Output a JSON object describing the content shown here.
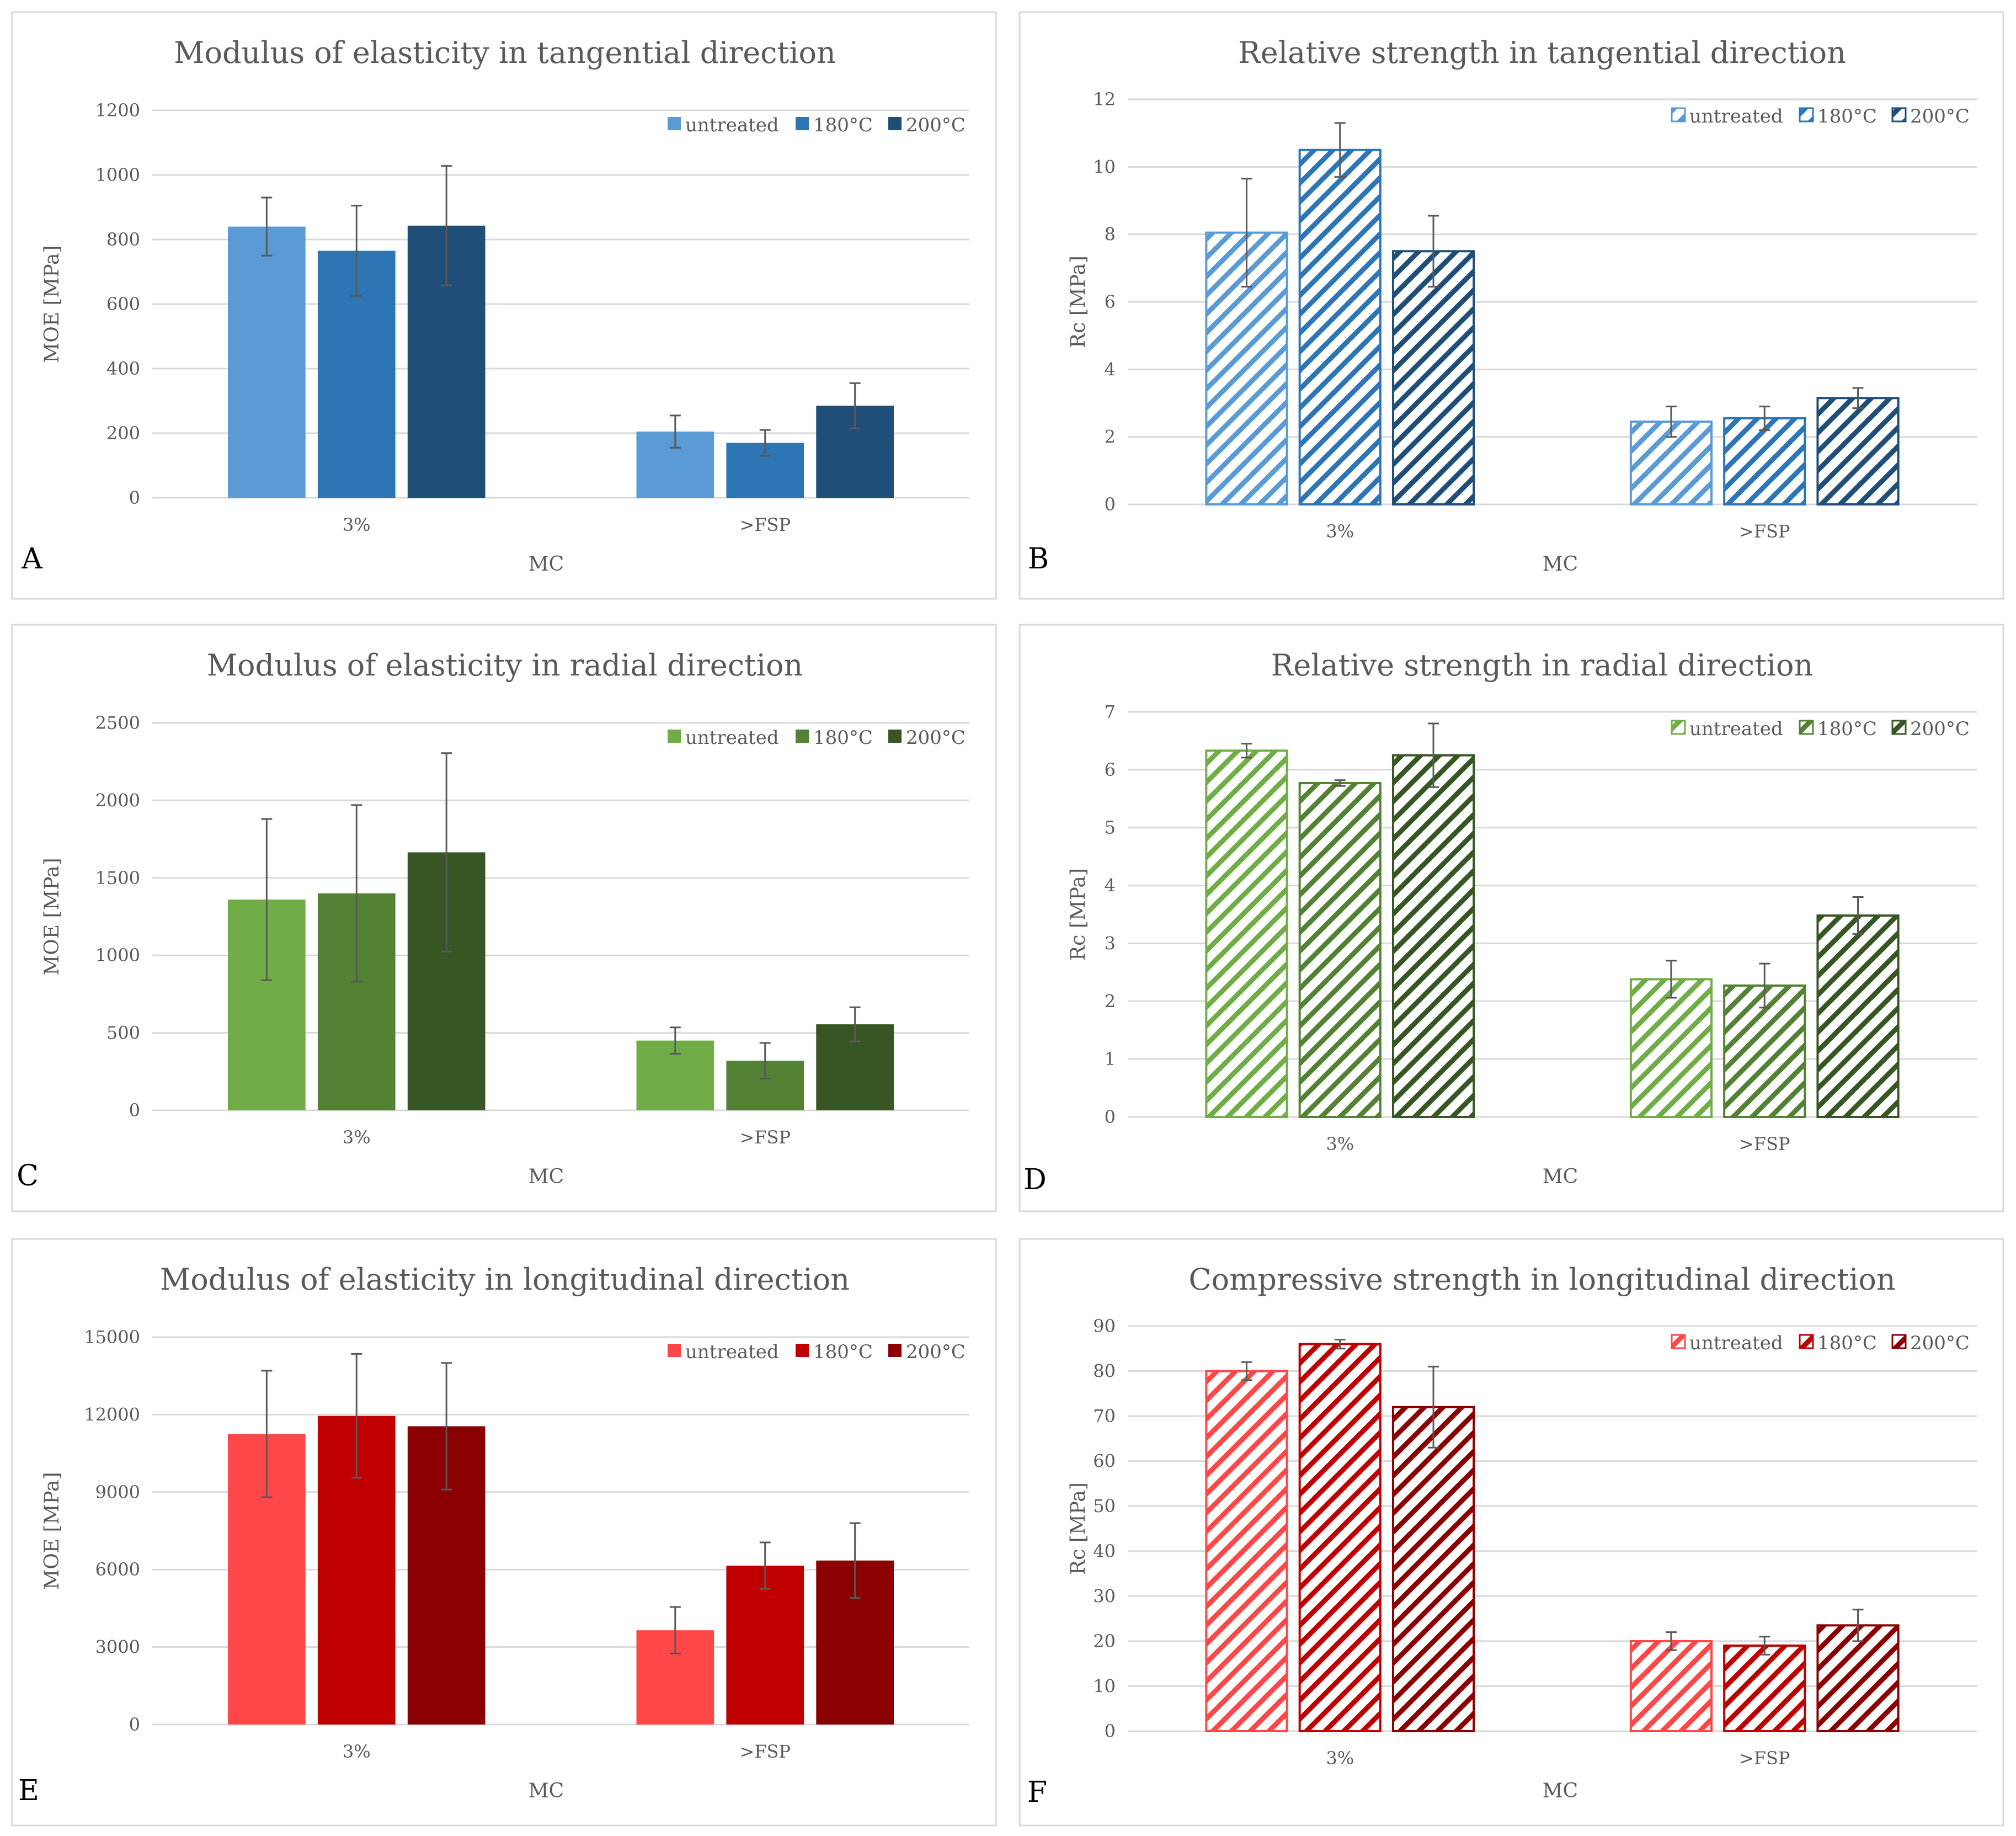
{
  "chart_data": [
    {
      "panel": "A",
      "type": "bar",
      "style": "solid",
      "title": "Modulus of elasticity in tangential direction",
      "xlabel": "MC",
      "ylabel": "MOE [MPa]",
      "categories": [
        "3%",
        ">FSP"
      ],
      "ylim": [
        0,
        1200
      ],
      "yticks": [
        0,
        200,
        400,
        600,
        800,
        1000,
        1200
      ],
      "series": [
        {
          "name": "untreated",
          "color": "#5B9BD5",
          "values": [
            840,
            205
          ],
          "err": [
            90,
            50
          ]
        },
        {
          "name": "180°C",
          "color": "#2E75B6",
          "values": [
            765,
            170
          ],
          "err": [
            140,
            40
          ]
        },
        {
          "name": "200°C",
          "color": "#1F4E79",
          "values": [
            843,
            285
          ],
          "err": [
            185,
            70
          ]
        }
      ]
    },
    {
      "panel": "B",
      "type": "bar",
      "style": "hatched",
      "title": "Relative strength in tangential direction",
      "xlabel": "MC",
      "ylabel": "Rc [MPa]",
      "categories": [
        "3%",
        ">FSP"
      ],
      "ylim": [
        0,
        12
      ],
      "yticks": [
        0,
        2,
        4,
        6,
        8,
        10,
        12
      ],
      "series": [
        {
          "name": "untreated",
          "color": "#5B9BD5",
          "values": [
            8.05,
            2.45
          ],
          "err": [
            1.6,
            0.45
          ]
        },
        {
          "name": "180°C",
          "color": "#2E75B6",
          "values": [
            10.5,
            2.55
          ],
          "err": [
            0.8,
            0.35
          ]
        },
        {
          "name": "200°C",
          "color": "#1F4E79",
          "values": [
            7.5,
            3.15
          ],
          "err": [
            1.05,
            0.3
          ]
        }
      ]
    },
    {
      "panel": "C",
      "type": "bar",
      "style": "solid",
      "title": "Modulus of elasticity in radial direction",
      "xlabel": "MC",
      "ylabel": "MOE [MPa]",
      "categories": [
        "3%",
        ">FSP"
      ],
      "ylim": [
        0,
        2500
      ],
      "yticks": [
        0,
        500,
        1000,
        1500,
        2000,
        2500
      ],
      "series": [
        {
          "name": "untreated",
          "color": "#70AD47",
          "values": [
            1360,
            450
          ],
          "err": [
            520,
            85
          ]
        },
        {
          "name": "180°C",
          "color": "#548235",
          "values": [
            1400,
            320
          ],
          "err": [
            570,
            115
          ]
        },
        {
          "name": "200°C",
          "color": "#375623",
          "values": [
            1665,
            555
          ],
          "err": [
            640,
            110
          ]
        }
      ]
    },
    {
      "panel": "D",
      "type": "bar",
      "style": "hatched",
      "title": "Relative strength in radial direction",
      "xlabel": "MC",
      "ylabel": "Rc [MPa]",
      "categories": [
        "3%",
        ">FSP"
      ],
      "ylim": [
        0,
        7
      ],
      "yticks": [
        0,
        1,
        2,
        3,
        4,
        5,
        6,
        7
      ],
      "series": [
        {
          "name": "untreated",
          "color": "#70AD47",
          "values": [
            6.33,
            2.38
          ],
          "err": [
            0.12,
            0.32
          ]
        },
        {
          "name": "180°C",
          "color": "#548235",
          "values": [
            5.77,
            2.27
          ],
          "err": [
            0.05,
            0.38
          ]
        },
        {
          "name": "200°C",
          "color": "#375623",
          "values": [
            6.25,
            3.48
          ],
          "err": [
            0.55,
            0.32
          ]
        }
      ]
    },
    {
      "panel": "E",
      "type": "bar",
      "style": "solid",
      "title": "Modulus of elasticity in longitudinal direction",
      "xlabel": "MC",
      "ylabel": "MOE [MPa]",
      "categories": [
        "3%",
        ">FSP"
      ],
      "ylim": [
        0,
        15000
      ],
      "yticks": [
        0,
        3000,
        6000,
        9000,
        12000,
        15000
      ],
      "series": [
        {
          "name": "untreated",
          "color": "#FF4747",
          "values": [
            11250,
            3650
          ],
          "err": [
            2450,
            900
          ]
        },
        {
          "name": "180°C",
          "color": "#C00000",
          "values": [
            11950,
            6150
          ],
          "err": [
            2400,
            900
          ]
        },
        {
          "name": "200°C",
          "color": "#8B0000",
          "values": [
            11550,
            6350
          ],
          "err": [
            2450,
            1450
          ]
        }
      ]
    },
    {
      "panel": "F",
      "type": "bar",
      "style": "hatched",
      "title": "Compressive strength in longitudinal direction",
      "xlabel": "MC",
      "ylabel": "Rc [MPa]",
      "categories": [
        "3%",
        ">FSP"
      ],
      "ylim": [
        0,
        90
      ],
      "yticks": [
        0,
        10,
        20,
        30,
        40,
        50,
        60,
        70,
        80,
        90
      ],
      "series": [
        {
          "name": "untreated",
          "color": "#FF4747",
          "values": [
            80,
            20
          ],
          "err": [
            2,
            2
          ]
        },
        {
          "name": "180°C",
          "color": "#C00000",
          "values": [
            86,
            19
          ],
          "err": [
            1,
            2
          ]
        },
        {
          "name": "200°C",
          "color": "#8B0000",
          "values": [
            72,
            23.5
          ],
          "err": [
            9,
            3.5
          ]
        }
      ]
    }
  ]
}
